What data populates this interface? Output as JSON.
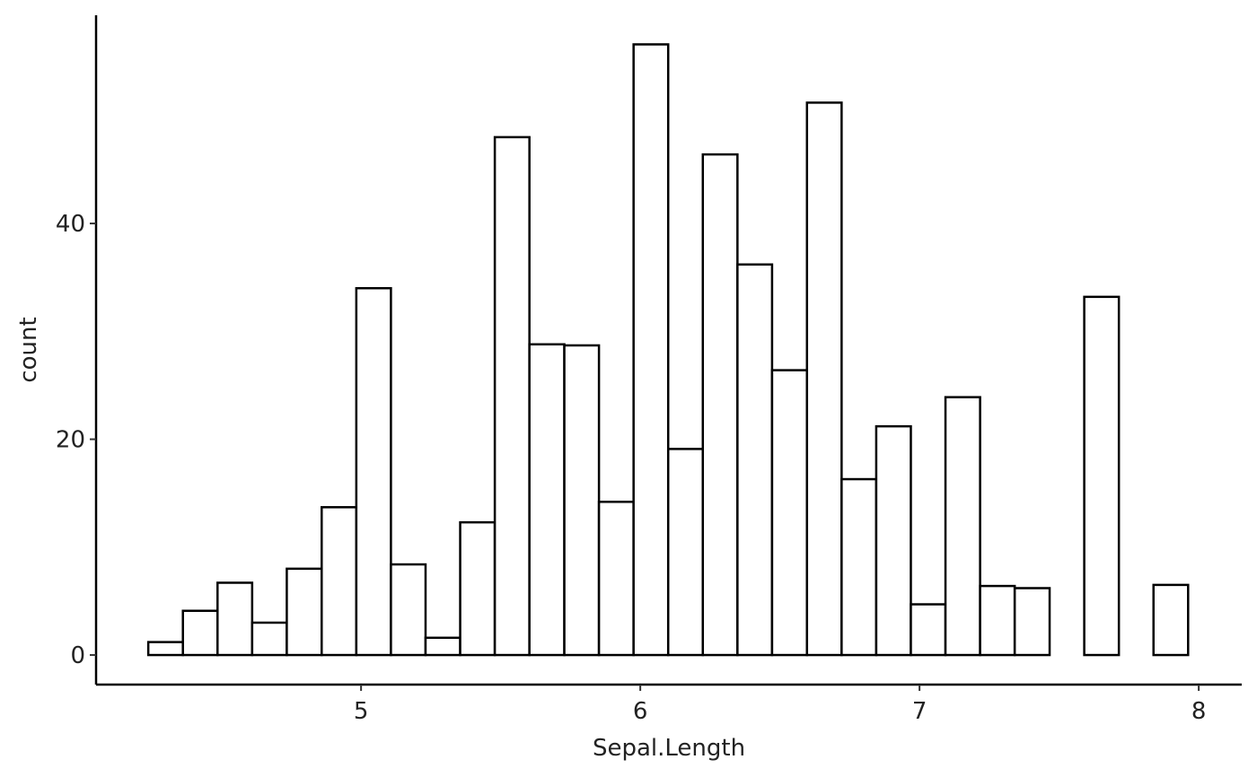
{
  "chart_data": {
    "type": "histogram",
    "x_label": "Sepal.Length",
    "y_label": "count",
    "bins": [
      4.238,
      4.362,
      4.486,
      4.61,
      4.734,
      4.859,
      4.983,
      5.107,
      5.231,
      5.355,
      5.479,
      5.603,
      5.728,
      5.852,
      5.976,
      6.1,
      6.224,
      6.348,
      6.472,
      6.597,
      6.721,
      6.845,
      6.969,
      7.093,
      7.217,
      7.341,
      7.466,
      7.59,
      7.714,
      7.838,
      7.962
    ],
    "values": [
      1.2,
      4.1,
      6.7,
      3.0,
      8.0,
      13.7,
      34.0,
      8.4,
      1.6,
      12.3,
      48.0,
      28.8,
      28.7,
      14.2,
      56.6,
      19.1,
      46.4,
      36.2,
      26.4,
      51.2,
      16.3,
      21.2,
      4.7,
      23.9,
      6.4,
      6.2,
      0,
      33.2,
      0,
      6.5
    ],
    "fill": "#ffffff",
    "edge_color": "#000000",
    "xlim": [
      4.051,
      8.154
    ],
    "xticks": [
      5,
      6,
      7,
      8
    ],
    "ylim": [
      -2.74,
      59.3
    ],
    "yticks": [
      0,
      20,
      40
    ],
    "grid": false
  }
}
